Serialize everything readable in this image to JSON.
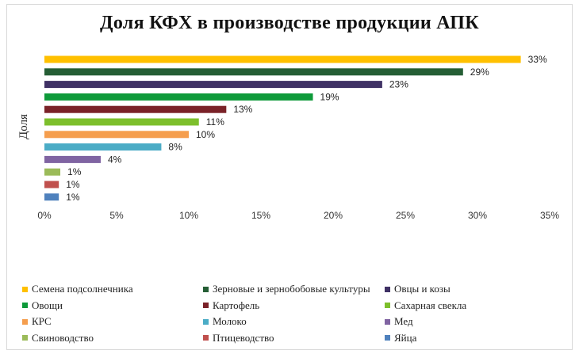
{
  "chart_data": {
    "type": "bar",
    "orientation": "horizontal",
    "title": "Доля КФХ в производстве продукции АПК",
    "ylabel": "Доля",
    "xlim": [
      0,
      35
    ],
    "xticks": [
      "0%",
      "5%",
      "10%",
      "15%",
      "20%",
      "25%",
      "30%",
      "35%"
    ],
    "grid": false,
    "legend_position": "bottom",
    "series": [
      {
        "name": "Семена подсолнечника",
        "value": 33,
        "label": "33%",
        "color": "#FFC000"
      },
      {
        "name": "Зерновые и зернобобовые культуры",
        "value": 29,
        "label": "29%",
        "color": "#255E35"
      },
      {
        "name": "Овцы и козы",
        "value": 23.4,
        "label": "23%",
        "color": "#3F3165"
      },
      {
        "name": "Овощи",
        "value": 18.6,
        "label": "19%",
        "color": "#0E9A3A"
      },
      {
        "name": "Картофель",
        "value": 12.6,
        "label": "13%",
        "color": "#7A2228"
      },
      {
        "name": "Сахарная свекла",
        "value": 10.7,
        "label": "11%",
        "color": "#7DBF2C"
      },
      {
        "name": "КРС",
        "value": 10,
        "label": "10%",
        "color": "#F59E4E"
      },
      {
        "name": "Молоко",
        "value": 8.1,
        "label": "8%",
        "color": "#4BACC6"
      },
      {
        "name": "Мед",
        "value": 3.9,
        "label": "4%",
        "color": "#8064A2"
      },
      {
        "name": "Свиноводство",
        "value": 1.1,
        "label": "1%",
        "color": "#9BBB59"
      },
      {
        "name": "Птицеводство",
        "value": 1,
        "label": "1%",
        "color": "#C0504D"
      },
      {
        "name": "Яйца",
        "value": 1,
        "label": "1%",
        "color": "#4F81BD"
      }
    ]
  }
}
